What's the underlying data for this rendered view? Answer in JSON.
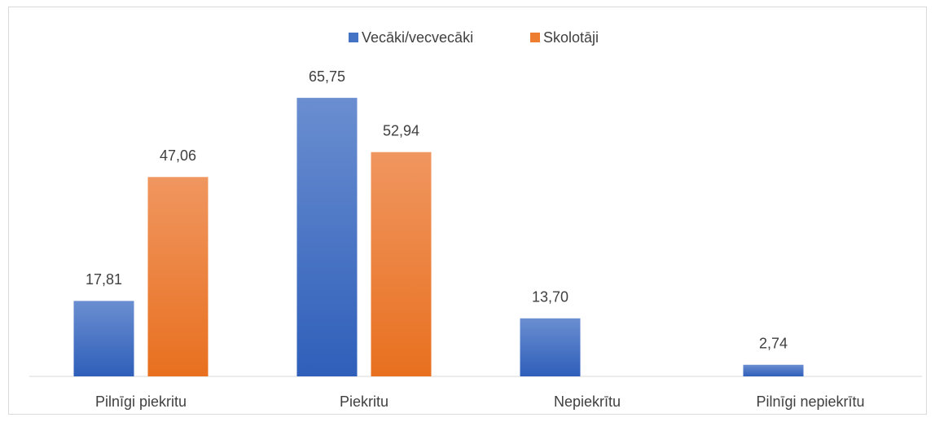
{
  "chart_data": {
    "type": "bar",
    "categories": [
      "Pilnīgi piekritu",
      "Piekritu",
      "Nepiekrītu",
      "Pilnīgi nepiekrītu"
    ],
    "series": [
      {
        "name": "Vecāki/vecvecāki",
        "color": "#4472c4",
        "values": [
          17.81,
          65.75,
          13.7,
          2.74
        ],
        "value_labels": [
          "17,81",
          "65,75",
          "13,70",
          "2,74"
        ]
      },
      {
        "name": "Skolotāji",
        "color": "#ed7d31",
        "values": [
          47.06,
          52.94,
          null,
          null
        ],
        "value_labels": [
          "47,06",
          "52,94",
          null,
          null
        ]
      }
    ],
    "ylim": [
      0,
      70
    ],
    "legend": "top"
  }
}
